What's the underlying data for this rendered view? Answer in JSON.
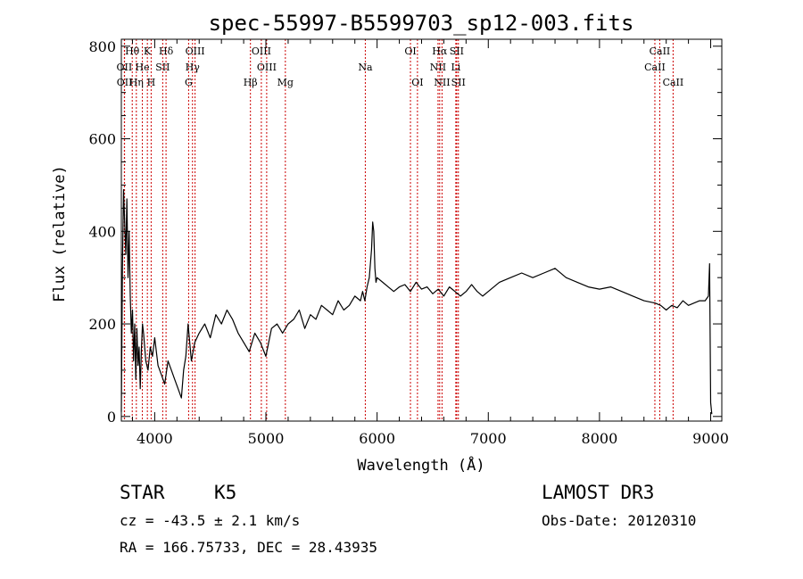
{
  "chart_data": {
    "type": "line",
    "title": "spec-55997-B5599703_sp12-003.fits",
    "xlabel": "Wavelength (Å)",
    "ylabel": "Flux (relative)",
    "xlim": [
      3700,
      9100
    ],
    "ylim": [
      -10,
      815
    ],
    "x_ticks": [
      4000,
      5000,
      6000,
      7000,
      8000,
      9000
    ],
    "x_tick_labels": [
      "4000",
      "5000",
      "6000",
      "7000",
      "8000",
      "9000"
    ],
    "y_ticks": [
      0,
      200,
      400,
      600,
      800
    ],
    "y_tick_labels": [
      "0",
      "200",
      "400",
      "600",
      "800"
    ],
    "grid": false,
    "line_color": "#000000",
    "marker_line_color": "#cc0000",
    "series": [
      {
        "name": "flux",
        "x": [
          3700,
          3710,
          3720,
          3730,
          3740,
          3750,
          3760,
          3770,
          3780,
          3790,
          3800,
          3810,
          3820,
          3830,
          3840,
          3850,
          3860,
          3870,
          3880,
          3890,
          3900,
          3920,
          3940,
          3960,
          3980,
          4000,
          4030,
          4060,
          4090,
          4120,
          4150,
          4180,
          4210,
          4240,
          4260,
          4280,
          4300,
          4330,
          4360,
          4400,
          4450,
          4500,
          4550,
          4600,
          4650,
          4700,
          4750,
          4800,
          4850,
          4900,
          4950,
          5000,
          5050,
          5100,
          5150,
          5200,
          5250,
          5300,
          5350,
          5400,
          5450,
          5500,
          5550,
          5600,
          5650,
          5700,
          5750,
          5800,
          5850,
          5870,
          5890,
          5910,
          5930,
          5950,
          5960,
          5970,
          5980,
          5990,
          6000,
          6050,
          6100,
          6150,
          6200,
          6250,
          6300,
          6350,
          6400,
          6450,
          6500,
          6550,
          6600,
          6650,
          6700,
          6750,
          6800,
          6850,
          6900,
          6950,
          7000,
          7100,
          7200,
          7300,
          7400,
          7500,
          7600,
          7700,
          7800,
          7900,
          8000,
          8100,
          8200,
          8300,
          8400,
          8500,
          8550,
          8600,
          8650,
          8700,
          8750,
          8800,
          8850,
          8900,
          8950,
          8980,
          8990,
          9000,
          9010
        ],
        "y": [
          10,
          320,
          490,
          420,
          350,
          470,
          300,
          400,
          260,
          180,
          230,
          120,
          200,
          80,
          190,
          110,
          150,
          60,
          140,
          200,
          180,
          120,
          100,
          150,
          130,
          170,
          110,
          90,
          70,
          120,
          100,
          80,
          60,
          40,
          100,
          130,
          200,
          120,
          160,
          180,
          200,
          170,
          220,
          200,
          230,
          210,
          180,
          160,
          140,
          180,
          160,
          130,
          190,
          200,
          180,
          200,
          210,
          230,
          190,
          220,
          210,
          240,
          230,
          220,
          250,
          230,
          240,
          260,
          250,
          270,
          250,
          280,
          300,
          360,
          420,
          400,
          320,
          290,
          300,
          290,
          280,
          270,
          280,
          285,
          270,
          290,
          275,
          280,
          265,
          275,
          260,
          280,
          270,
          260,
          270,
          285,
          270,
          260,
          270,
          290,
          300,
          310,
          300,
          310,
          320,
          300,
          290,
          280,
          275,
          280,
          270,
          260,
          250,
          245,
          240,
          230,
          240,
          235,
          250,
          240,
          245,
          250,
          250,
          260,
          330,
          30,
          5
        ]
      }
    ],
    "emission_lines": [
      {
        "name": "Hθ",
        "wavelength": 3798,
        "row": 1,
        "position": "top"
      },
      {
        "name": "OII",
        "wavelength": 3727,
        "row": 2,
        "position": "top"
      },
      {
        "name": "OII",
        "wavelength": 3729,
        "row": 3,
        "position": "top"
      },
      {
        "name": "He",
        "wavelength": 3889,
        "row": 2,
        "position": "top"
      },
      {
        "name": "K",
        "wavelength": 3934,
        "row": 1,
        "position": "top"
      },
      {
        "name": "Hη",
        "wavelength": 3835,
        "row": 3,
        "position": "top"
      },
      {
        "name": "H",
        "wavelength": 3968,
        "row": 3,
        "position": "top"
      },
      {
        "name": "SII",
        "wavelength": 4072,
        "row": 2,
        "position": "top"
      },
      {
        "name": "Hδ",
        "wavelength": 4102,
        "row": 1,
        "position": "top"
      },
      {
        "name": "OIII",
        "wavelength": 4363,
        "row": 1,
        "position": "top"
      },
      {
        "name": "Hγ",
        "wavelength": 4340,
        "row": 2,
        "position": "top"
      },
      {
        "name": "G",
        "wavelength": 4305,
        "row": 3,
        "position": "top"
      },
      {
        "name": "Hβ",
        "wavelength": 4861,
        "row": 3,
        "position": "top"
      },
      {
        "name": "OIII",
        "wavelength": 4959,
        "row": 1,
        "position": "top"
      },
      {
        "name": "OIII",
        "wavelength": 5007,
        "row": 2,
        "position": "top"
      },
      {
        "name": "Mg",
        "wavelength": 5175,
        "row": 3,
        "position": "top"
      },
      {
        "name": "Na",
        "wavelength": 5894,
        "row": 2,
        "position": "top"
      },
      {
        "name": "OI",
        "wavelength": 6300,
        "row": 1,
        "position": "top"
      },
      {
        "name": "OI",
        "wavelength": 6363,
        "row": 3,
        "position": "top"
      },
      {
        "name": "Hα",
        "wavelength": 6563,
        "row": 1,
        "position": "top"
      },
      {
        "name": "SII",
        "wavelength": 6716,
        "row": 1,
        "position": "top"
      },
      {
        "name": "NII",
        "wavelength": 6548,
        "row": 2,
        "position": "top"
      },
      {
        "name": "Li",
        "wavelength": 6708,
        "row": 2,
        "position": "top"
      },
      {
        "name": "NII",
        "wavelength": 6584,
        "row": 3,
        "position": "top"
      },
      {
        "name": "SII",
        "wavelength": 6731,
        "row": 3,
        "position": "top"
      },
      {
        "name": "CaII",
        "wavelength": 8542,
        "row": 1,
        "position": "top"
      },
      {
        "name": "CaII",
        "wavelength": 8498,
        "row": 2,
        "position": "top"
      },
      {
        "name": "CaII",
        "wavelength": 8662,
        "row": 3,
        "position": "top"
      }
    ]
  },
  "info": {
    "object_class": "STAR",
    "subclass": "K5",
    "survey": "LAMOST DR3",
    "redshift": "cz = -43.5 ± 2.1 km/s",
    "obs_date": "Obs-Date: 20120310",
    "coords": "RA = 166.75733, DEC =  28.43935"
  }
}
